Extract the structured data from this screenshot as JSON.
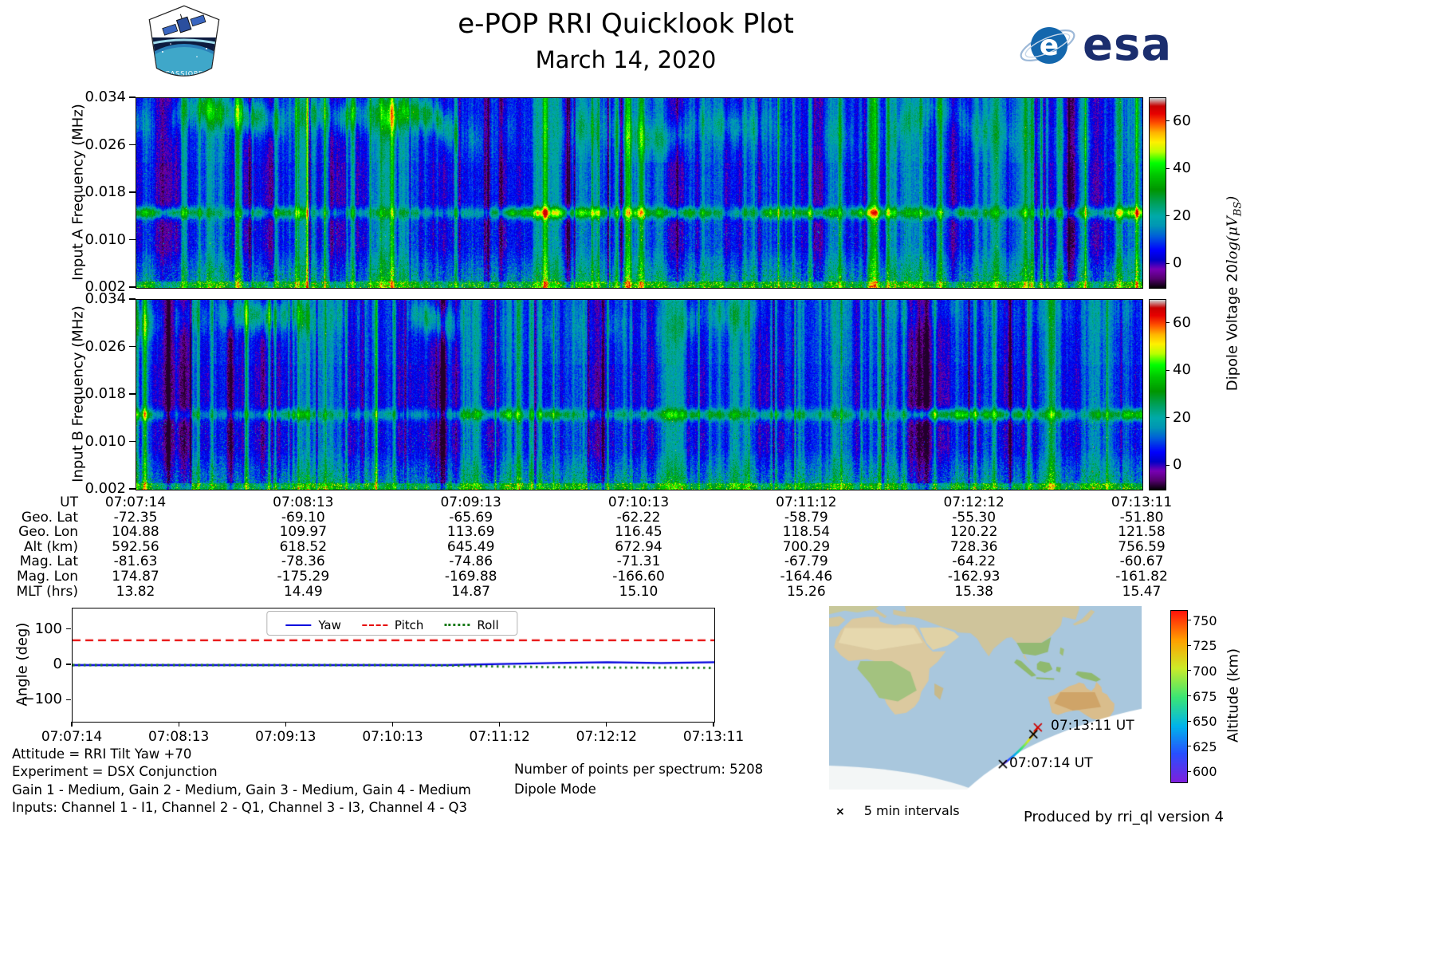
{
  "header": {
    "title": "e-POP RRI Quicklook Plot",
    "date": "March 14, 2020",
    "cassiope_patch": "CASSIOPE",
    "esa_wordmark": "esa"
  },
  "panels": {
    "a": {
      "ylabel": "Input A Frequency (MHz)"
    },
    "b": {
      "ylabel": "Input B Frequency (MHz)"
    },
    "ytick_labels": [
      "0.034",
      "0.026",
      "0.018",
      "0.010",
      "0.002"
    ],
    "colorbar": {
      "tick_labels": [
        "60",
        "40",
        "20",
        "0"
      ],
      "label_pre": "Dipole Voltage 20",
      "label_math": "log(μV",
      "label_sub": "BS",
      "label_post": ")"
    }
  },
  "ephemeris": {
    "rows": [
      {
        "label": "UT",
        "values": [
          "07:07:14",
          "07:08:13",
          "07:09:13",
          "07:10:13",
          "07:11:12",
          "07:12:12",
          "07:13:11"
        ]
      },
      {
        "label": "Geo. Lat",
        "values": [
          "-72.35",
          "-69.10",
          "-65.69",
          "-62.22",
          "-58.79",
          "-55.30",
          "-51.80"
        ]
      },
      {
        "label": "Geo. Lon",
        "values": [
          "104.88",
          "109.97",
          "113.69",
          "116.45",
          "118.54",
          "120.22",
          "121.58"
        ]
      },
      {
        "label": "Alt (km)",
        "values": [
          "592.56",
          "618.52",
          "645.49",
          "672.94",
          "700.29",
          "728.36",
          "756.59"
        ]
      },
      {
        "label": "Mag. Lat",
        "values": [
          "-81.63",
          "-78.36",
          "-74.86",
          "-71.31",
          "-67.79",
          "-64.22",
          "-60.67"
        ]
      },
      {
        "label": "Mag. Lon",
        "values": [
          "174.87",
          "-175.29",
          "-169.88",
          "-166.60",
          "-164.46",
          "-162.93",
          "-161.82"
        ]
      },
      {
        "label": "MLT (hrs)",
        "values": [
          "13.82",
          "14.49",
          "14.87",
          "15.10",
          "15.26",
          "15.38",
          "15.47"
        ]
      }
    ]
  },
  "angle_plot": {
    "ylabel": "Angle (deg)",
    "ytick_labels": [
      "100",
      "0",
      "−100"
    ],
    "ytick_values": [
      100,
      0,
      -100
    ],
    "xtick_labels": [
      "07:07:14",
      "07:08:13",
      "07:09:13",
      "07:10:13",
      "07:11:12",
      "07:12:12",
      "07:13:11"
    ],
    "legend": [
      "Yaw",
      "Pitch",
      "Roll"
    ]
  },
  "notes": {
    "attitude": "Attitude = RRI Tilt Yaw +70",
    "experiment": "Experiment = DSX Conjunction",
    "gains": "Gain 1 - Medium, Gain 2 - Medium, Gain 3 - Medium, Gain 4 - Medium",
    "inputs": "Inputs: Channel 1 - I1, Channel 2 - Q1, Channel 3 - I3, Channel 4 - Q3",
    "points": "Number of points per spectrum: 5208",
    "mode": "Dipole Mode"
  },
  "map": {
    "start_label": "07:07:14 UT",
    "end_label": "07:13:11 UT",
    "marker": "×",
    "intervals_note": "5 min intervals",
    "colorbar_label": "Altitude (km)"
  },
  "credit": "Produced by rri_ql version 4",
  "chart_data": [
    {
      "type": "heatmap",
      "name": "input_a_spectrogram",
      "ylabel": "Input A Frequency (MHz)",
      "y_range_mhz": [
        0.002,
        0.034
      ],
      "y_ticks_mhz": [
        0.034,
        0.026,
        0.018,
        0.01,
        0.002
      ],
      "x_ticks_ut": [
        "07:07:14",
        "07:08:13",
        "07:09:13",
        "07:10:13",
        "07:11:12",
        "07:12:12",
        "07:13:11"
      ],
      "colorbar": {
        "label": "Dipole Voltage 20log(μV_BS)",
        "ticks": [
          0,
          20,
          40,
          60
        ],
        "range": [
          -10,
          70
        ],
        "colormap": "nipy_spectral"
      },
      "features": [
        "broadband blue noise background with many vertical interference streaks",
        "bright green emission band near 0.015 MHz across the full interval",
        "patchy green enhancement below 0.008 MHz",
        "diffuse wispy emission between 0.027 and 0.034 MHz, strongest before 07:09"
      ]
    },
    {
      "type": "heatmap",
      "name": "input_b_spectrogram",
      "ylabel": "Input B Frequency (MHz)",
      "y_range_mhz": [
        0.002,
        0.034
      ],
      "y_ticks_mhz": [
        0.034,
        0.026,
        0.018,
        0.01,
        0.002
      ],
      "x_ticks_ut": [
        "07:07:14",
        "07:08:13",
        "07:09:13",
        "07:10:13",
        "07:11:12",
        "07:12:12",
        "07:13:11"
      ],
      "colorbar": {
        "label": "Dipole Voltage 20log(μV_BS)",
        "ticks": [
          0,
          20,
          40,
          60
        ],
        "range": [
          -10,
          70
        ],
        "colormap": "nipy_spectral"
      },
      "features": [
        "broadband blue noise background with vertical interference streaks",
        "bright green emission band near 0.014 MHz, nearly continuous toward end of pass",
        "green speckle enhancement below 0.008 MHz",
        "diffuse emission patches between 0.026 and 0.034 MHz"
      ]
    },
    {
      "type": "table",
      "name": "ephemeris_table",
      "row_labels": [
        "UT",
        "Geo. Lat",
        "Geo. Lon",
        "Alt (km)",
        "Mag. Lat",
        "Mag. Lon",
        "MLT (hrs)"
      ],
      "rows": {
        "UT": [
          "07:07:14",
          "07:08:13",
          "07:09:13",
          "07:10:13",
          "07:11:12",
          "07:12:12",
          "07:13:11"
        ],
        "Geo. Lat": [
          -72.35,
          -69.1,
          -65.69,
          -62.22,
          -58.79,
          -55.3,
          -51.8
        ],
        "Geo. Lon": [
          104.88,
          109.97,
          113.69,
          116.45,
          118.54,
          120.22,
          121.58
        ],
        "Alt (km)": [
          592.56,
          618.52,
          645.49,
          672.94,
          700.29,
          728.36,
          756.59
        ],
        "Mag. Lat": [
          -81.63,
          -78.36,
          -74.86,
          -71.31,
          -67.79,
          -64.22,
          -60.67
        ],
        "Mag. Lon": [
          174.87,
          -175.29,
          -169.88,
          -166.6,
          -164.46,
          -162.93,
          -161.82
        ],
        "MLT (hrs)": [
          13.82,
          14.49,
          14.87,
          15.1,
          15.26,
          15.38,
          15.47
        ]
      }
    },
    {
      "type": "line",
      "name": "attitude_angles",
      "ylabel": "Angle (deg)",
      "ylim": [
        -160,
        160
      ],
      "yticks": [
        100,
        0,
        -100
      ],
      "x_ticks_ut": [
        "07:07:14",
        "07:08:13",
        "07:09:13",
        "07:10:13",
        "07:11:12",
        "07:12:12",
        "07:13:11"
      ],
      "series": [
        {
          "name": "Yaw",
          "color": "#0000dd",
          "style": "solid",
          "values": [
            0,
            0,
            0,
            0,
            0,
            0,
            0,
            0,
            3,
            6,
            8,
            6,
            8
          ]
        },
        {
          "name": "Pitch",
          "color": "#e60000",
          "style": "dashed",
          "values": [
            70,
            70,
            70,
            70,
            70,
            70,
            70,
            70,
            70,
            70,
            70,
            70,
            70
          ]
        },
        {
          "name": "Roll",
          "color": "#1a7a1a",
          "style": "dotted",
          "values": [
            0,
            0,
            0,
            0,
            0,
            0,
            0,
            -1,
            -4,
            -6,
            -7,
            -7,
            -8
          ]
        }
      ],
      "legend_position": "upper center",
      "grid": false
    },
    {
      "type": "map",
      "name": "ground_track_map",
      "region": "Africa, Indian Ocean, Australia, Southern Ocean",
      "track": {
        "start": {
          "ut": "07:07:14",
          "geo_lat": -72.35,
          "geo_lon": 104.88,
          "alt_km": 592.56
        },
        "end": {
          "ut": "07:13:11",
          "geo_lat": -51.8,
          "geo_lon": 121.58,
          "alt_km": 756.59
        },
        "marker_interval_min": 5
      },
      "colorbar": {
        "label": "Altitude (km)",
        "ticks": [
          600,
          625,
          650,
          675,
          700,
          725,
          750
        ],
        "range": [
          590,
          760
        ],
        "colormap": "rainbow"
      }
    }
  ]
}
